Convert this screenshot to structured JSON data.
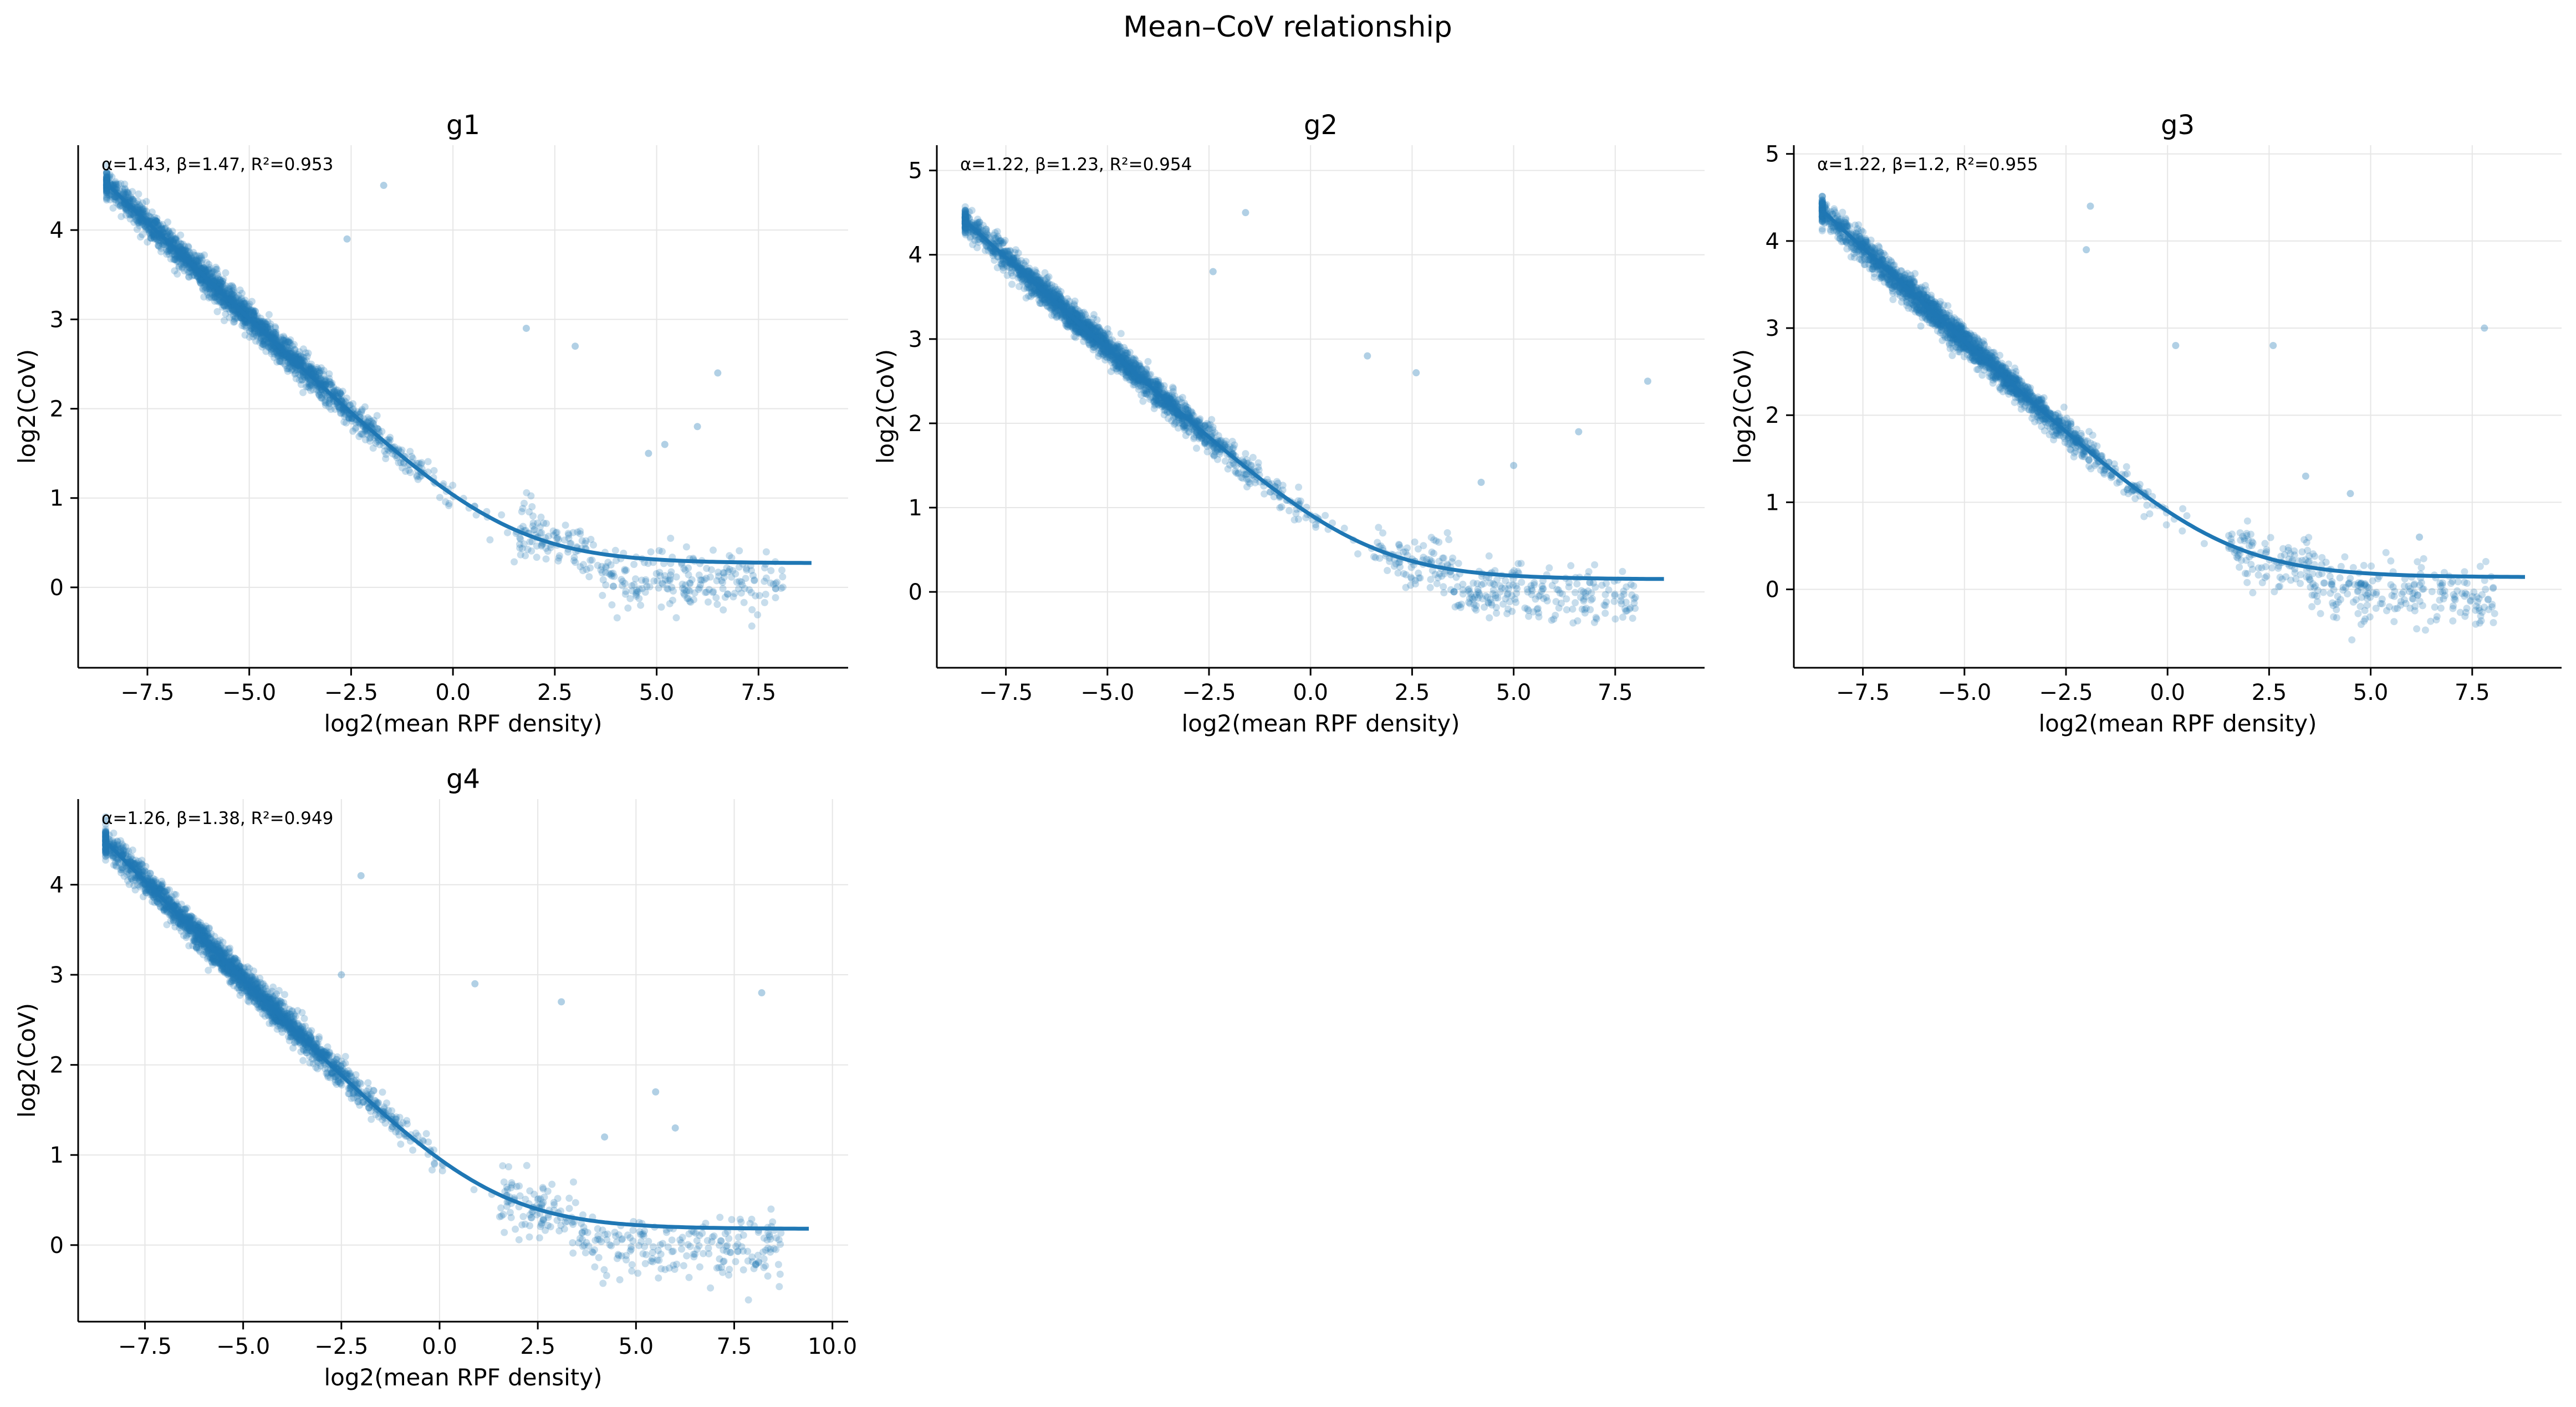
{
  "title": "Mean–CoV relationship",
  "colors": {
    "points": "#1f77b4",
    "fit_line": "#1f77b4",
    "grid": "#e6e6e6",
    "axes": "#000000"
  },
  "chart_data": [
    {
      "type": "scatter",
      "title": "g1",
      "xlabel": "log2(mean RPF density)",
      "ylabel": "log2(CoV)",
      "annotation": "α=1.43, β=1.47, R²=0.953",
      "fit": {
        "alpha": 1.43,
        "beta": 1.47,
        "r2": 0.953,
        "floor": 0.27
      },
      "xlim": [
        -9.2,
        9.7
      ],
      "ylim": [
        -0.9,
        4.95
      ],
      "xticks": [
        -7.5,
        -5.0,
        -2.5,
        0.0,
        2.5,
        5.0,
        7.5
      ],
      "xticklabels": [
        "−7.5",
        "−5.0",
        "−2.5",
        "0.0",
        "2.5",
        "5.0",
        "7.5"
      ],
      "yticks": [
        0,
        1,
        2,
        3,
        4
      ],
      "yticklabels": [
        "0",
        "1",
        "2",
        "3",
        "4"
      ],
      "x_range": [
        -8.5,
        8.8
      ],
      "grid": true,
      "outliers": [
        [
          -1.7,
          4.5
        ],
        [
          -2.6,
          3.9
        ],
        [
          1.8,
          2.9
        ],
        [
          3.0,
          2.7
        ],
        [
          6.5,
          2.4
        ],
        [
          4.8,
          1.5
        ],
        [
          5.2,
          1.6
        ],
        [
          6.0,
          1.8
        ]
      ]
    },
    {
      "type": "scatter",
      "title": "g2",
      "xlabel": "log2(mean RPF density)",
      "ylabel": "log2(CoV)",
      "annotation": "α=1.22, β=1.23, R²=0.954",
      "fit": {
        "alpha": 1.22,
        "beta": 1.23,
        "r2": 0.954,
        "floor": 0.15
      },
      "xlim": [
        -9.2,
        9.7
      ],
      "ylim": [
        -0.9,
        5.3
      ],
      "xticks": [
        -7.5,
        -5.0,
        -2.5,
        0.0,
        2.5,
        5.0,
        7.5
      ],
      "xticklabels": [
        "−7.5",
        "−5.0",
        "−2.5",
        "0.0",
        "2.5",
        "5.0",
        "7.5"
      ],
      "yticks": [
        0,
        1,
        2,
        3,
        4,
        5
      ],
      "yticklabels": [
        "0",
        "1",
        "2",
        "3",
        "4",
        "5"
      ],
      "x_range": [
        -8.5,
        8.7
      ],
      "grid": true,
      "outliers": [
        [
          -1.6,
          4.5
        ],
        [
          -2.4,
          3.8
        ],
        [
          1.4,
          2.8
        ],
        [
          2.6,
          2.6
        ],
        [
          6.6,
          1.9
        ],
        [
          8.3,
          2.5
        ],
        [
          5.0,
          1.5
        ],
        [
          4.2,
          1.3
        ]
      ]
    },
    {
      "type": "scatter",
      "title": "g3",
      "xlabel": "log2(mean RPF density)",
      "ylabel": "log2(CoV)",
      "annotation": "α=1.22, β=1.2, R²=0.955",
      "fit": {
        "alpha": 1.22,
        "beta": 1.2,
        "r2": 0.955,
        "floor": 0.14
      },
      "xlim": [
        -9.2,
        9.7
      ],
      "ylim": [
        -0.9,
        5.1
      ],
      "xticks": [
        -7.5,
        -5.0,
        -2.5,
        0.0,
        2.5,
        5.0,
        7.5
      ],
      "xticklabels": [
        "−7.5",
        "−5.0",
        "−2.5",
        "0.0",
        "2.5",
        "5.0",
        "7.5"
      ],
      "yticks": [
        0,
        1,
        2,
        3,
        4,
        5
      ],
      "yticklabels": [
        "0",
        "1",
        "2",
        "3",
        "4",
        "5"
      ],
      "x_range": [
        -8.5,
        8.8
      ],
      "grid": true,
      "outliers": [
        [
          -1.9,
          4.4
        ],
        [
          -2.0,
          3.9
        ],
        [
          0.2,
          2.8
        ],
        [
          2.6,
          2.8
        ],
        [
          7.8,
          3.0
        ],
        [
          6.2,
          0.6
        ],
        [
          4.5,
          1.1
        ],
        [
          3.4,
          1.3
        ]
      ]
    },
    {
      "type": "scatter",
      "title": "g4",
      "xlabel": "log2(mean RPF density)",
      "ylabel": "log2(CoV)",
      "annotation": "α=1.26, β=1.38, R²=0.949",
      "fit": {
        "alpha": 1.26,
        "beta": 1.38,
        "r2": 0.949,
        "floor": 0.18
      },
      "xlim": [
        -9.2,
        10.4
      ],
      "ylim": [
        -0.85,
        4.95
      ],
      "xticks": [
        -7.5,
        -5.0,
        -2.5,
        0.0,
        2.5,
        5.0,
        7.5,
        10.0
      ],
      "xticklabels": [
        "−7.5",
        "−5.0",
        "−2.5",
        "0.0",
        "2.5",
        "5.0",
        "7.5",
        "10.0"
      ],
      "yticks": [
        0,
        1,
        2,
        3,
        4
      ],
      "yticklabels": [
        "0",
        "1",
        "2",
        "3",
        "4"
      ],
      "x_range": [
        -8.5,
        9.4
      ],
      "grid": true,
      "outliers": [
        [
          -2.0,
          4.1
        ],
        [
          -2.5,
          3.0
        ],
        [
          0.9,
          2.9
        ],
        [
          3.1,
          2.7
        ],
        [
          8.2,
          2.8
        ],
        [
          5.5,
          1.7
        ],
        [
          4.2,
          1.2
        ],
        [
          6.0,
          1.3
        ]
      ]
    }
  ]
}
